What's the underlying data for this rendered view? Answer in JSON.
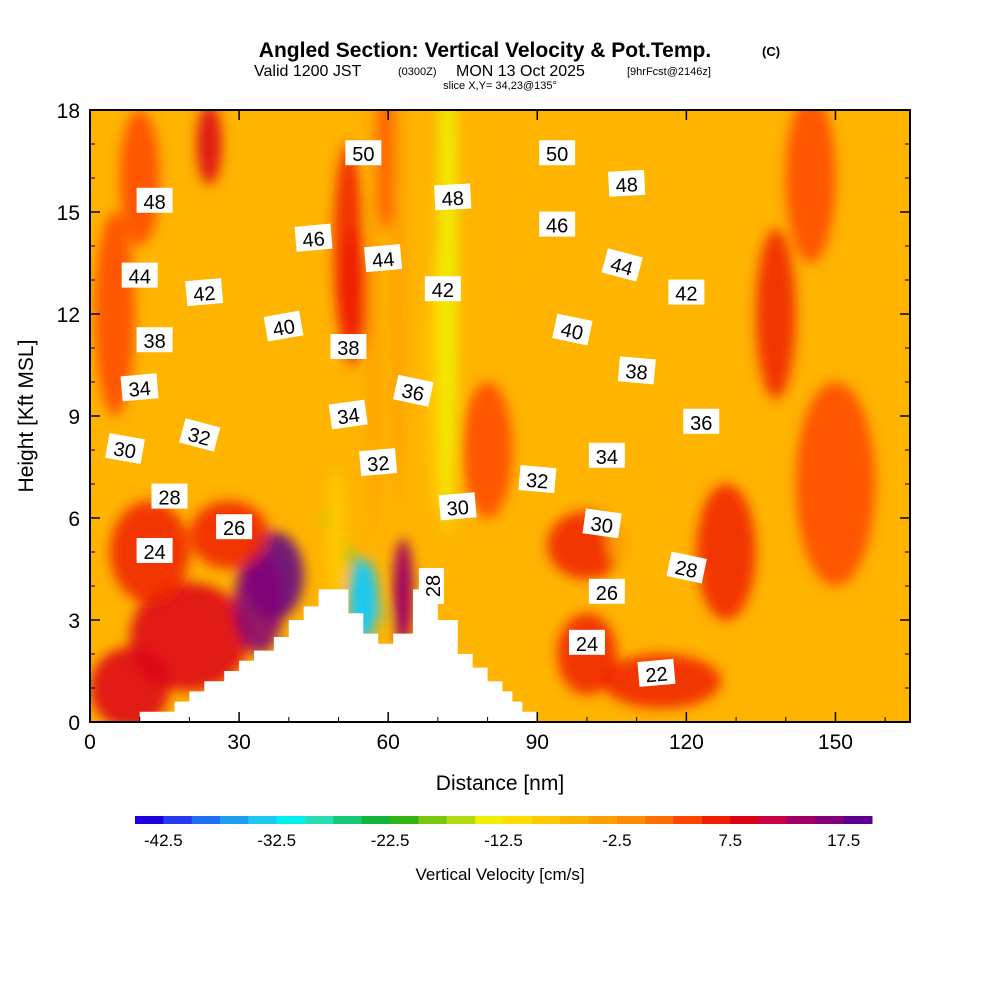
{
  "title": {
    "main": "Angled Section: Vertical Velocity & Pot.Temp.",
    "unit": "(C)",
    "valid_prefix": "Valid 1200 JST",
    "valid_utc": "(0300Z)",
    "valid_date": "MON 13 Oct 2025",
    "valid_fcst": "[9hrFcst@2146z]",
    "slice": "slice X,Y= 34,23@135°"
  },
  "chart_data": {
    "type": "heatmap",
    "description_field": "vertical velocity (filled) with potential temperature contours",
    "xlabel": "Distance [nm]",
    "ylabel": "Height [Kft MSL]",
    "xlim": [
      0,
      165
    ],
    "ylim": [
      0,
      18
    ],
    "x_ticks": [
      "0",
      "30",
      "60",
      "90",
      "120",
      "150"
    ],
    "x_tick_values": [
      0,
      30,
      60,
      90,
      120,
      150
    ],
    "y_ticks": [
      "0",
      "3",
      "6",
      "9",
      "12",
      "15",
      "18"
    ],
    "y_tick_values": [
      0,
      3,
      6,
      9,
      12,
      15,
      18
    ],
    "colorbar": {
      "label": "Vertical Velocity [cm/s]",
      "min": -45,
      "max": 20,
      "step": 2.5,
      "tick_labels": [
        "-42.5",
        "-32.5",
        "-22.5",
        "-12.5",
        "-2.5",
        "7.5",
        "17.5"
      ],
      "tick_values": [
        -42.5,
        -32.5,
        -22.5,
        -12.5,
        -2.5,
        7.5,
        17.5
      ],
      "colors": [
        "#1e00dc",
        "#2838f0",
        "#1e6ef0",
        "#1ea0f0",
        "#1ec8f0",
        "#00f0f0",
        "#28dcb4",
        "#14c878",
        "#14b43c",
        "#32b414",
        "#78c814",
        "#b4dc14",
        "#f0f000",
        "#ffdc00",
        "#ffc800",
        "#ffb400",
        "#ffa000",
        "#ff8c00",
        "#ff6e00",
        "#ff4600",
        "#f01e00",
        "#dc0014",
        "#c80046",
        "#a00064",
        "#820078",
        "#5a008c"
      ]
    },
    "theta_contour_labels": [
      {
        "text": "50",
        "x": 55,
        "y": 16.7,
        "rot": 0
      },
      {
        "text": "50",
        "x": 94,
        "y": 16.7,
        "rot": 0
      },
      {
        "text": "48",
        "x": 13,
        "y": 15.3,
        "rot": 0
      },
      {
        "text": "48",
        "x": 73,
        "y": 15.4,
        "rot": -3
      },
      {
        "text": "48",
        "x": 108,
        "y": 15.8,
        "rot": -3
      },
      {
        "text": "46",
        "x": 45,
        "y": 14.2,
        "rot": -5
      },
      {
        "text": "46",
        "x": 94,
        "y": 14.6,
        "rot": 0
      },
      {
        "text": "44",
        "x": 10,
        "y": 13.1,
        "rot": 0
      },
      {
        "text": "44",
        "x": 59,
        "y": 13.6,
        "rot": -5
      },
      {
        "text": "44",
        "x": 107,
        "y": 13.4,
        "rot": 15
      },
      {
        "text": "42",
        "x": 23,
        "y": 12.6,
        "rot": -5
      },
      {
        "text": "42",
        "x": 71,
        "y": 12.7,
        "rot": 0
      },
      {
        "text": "42",
        "x": 120,
        "y": 12.6,
        "rot": 0
      },
      {
        "text": "40",
        "x": 39,
        "y": 11.6,
        "rot": -10
      },
      {
        "text": "40",
        "x": 97,
        "y": 11.5,
        "rot": 12
      },
      {
        "text": "38",
        "x": 13,
        "y": 11.2,
        "rot": 0
      },
      {
        "text": "38",
        "x": 52,
        "y": 11.0,
        "rot": 0
      },
      {
        "text": "38",
        "x": 110,
        "y": 10.3,
        "rot": 5
      },
      {
        "text": "36",
        "x": 65,
        "y": 9.7,
        "rot": 12
      },
      {
        "text": "36",
        "x": 123,
        "y": 8.8,
        "rot": 0
      },
      {
        "text": "34",
        "x": 10,
        "y": 9.8,
        "rot": -5
      },
      {
        "text": "34",
        "x": 52,
        "y": 9.0,
        "rot": -8
      },
      {
        "text": "34",
        "x": 104,
        "y": 7.8,
        "rot": 0
      },
      {
        "text": "32",
        "x": 22,
        "y": 8.4,
        "rot": 15
      },
      {
        "text": "32",
        "x": 58,
        "y": 7.6,
        "rot": -5
      },
      {
        "text": "32",
        "x": 90,
        "y": 7.1,
        "rot": 5
      },
      {
        "text": "30",
        "x": 7,
        "y": 8.0,
        "rot": 10
      },
      {
        "text": "30",
        "x": 74,
        "y": 6.3,
        "rot": -5
      },
      {
        "text": "30",
        "x": 103,
        "y": 5.8,
        "rot": 8
      },
      {
        "text": "28",
        "x": 16,
        "y": 6.6,
        "rot": 0
      },
      {
        "text": "28",
        "x": 69,
        "y": 4.0,
        "rot": -90
      },
      {
        "text": "28",
        "x": 120,
        "y": 4.5,
        "rot": 12
      },
      {
        "text": "26",
        "x": 29,
        "y": 5.7,
        "rot": 0
      },
      {
        "text": "26",
        "x": 104,
        "y": 3.8,
        "rot": 0
      },
      {
        "text": "24",
        "x": 13,
        "y": 5.0,
        "rot": 0
      },
      {
        "text": "24",
        "x": 100,
        "y": 2.3,
        "rot": 0
      },
      {
        "text": "22",
        "x": 114,
        "y": 1.4,
        "rot": -5
      }
    ]
  }
}
